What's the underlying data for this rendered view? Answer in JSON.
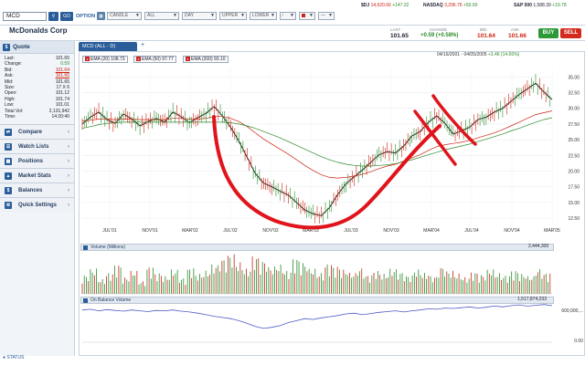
{
  "toolbar": {
    "ticker": "MCD",
    "go_label": "GO",
    "option_label": "OPTION",
    "chart_type": "CANDLE",
    "range": "ALL",
    "interval": "DAY",
    "upper": "UPPER",
    "lower": "LOWER"
  },
  "indices": [
    {
      "name": "$DJ",
      "value": "14,620.66",
      "change": "+147.22",
      "dir": "up"
    },
    {
      "name": "NASDAQ",
      "value": "3,296.76",
      "change": "+50.00",
      "dir": "up"
    },
    {
      "name": "S&P 500",
      "value": "1,588.39",
      "change": "+19.78",
      "dir": "up"
    }
  ],
  "quote": {
    "company": "McDonalds Corp",
    "last_label": "LAST",
    "last": "101.65",
    "change_label": "CHANGE",
    "change": "+0.59 (+0.58%)",
    "bid_label": "BID",
    "bid": "101.64",
    "ask_label": "ASK",
    "ask": "101.66",
    "buy": "BUY",
    "sell": "SELL"
  },
  "sidebar": {
    "quote_title": "Quote",
    "rows": [
      {
        "label": "Last:",
        "value": "101.65",
        "color": "#223"
      },
      {
        "label": "Change:",
        "value": "0.59",
        "color": "#2a8a2a"
      },
      {
        "label": "Bid:",
        "value": "101.64",
        "color": "#c21"
      },
      {
        "label": "Ask:",
        "value": "101.66",
        "color": "#c21"
      },
      {
        "label": "Mid:",
        "value": "101.65",
        "color": "#223"
      },
      {
        "label": "Size:",
        "value": "17 X 6",
        "color": "#223"
      },
      {
        "label": "Open:",
        "value": "101.12",
        "color": "#223"
      },
      {
        "label": "High:",
        "value": "101.74",
        "color": "#223"
      },
      {
        "label": "Low:",
        "value": "101.01",
        "color": "#223"
      },
      {
        "label": "Total Vol:",
        "value": "2,131,942",
        "color": "#223"
      },
      {
        "label": "Time:",
        "value": "14:20:40",
        "color": "#223"
      }
    ],
    "menu": [
      {
        "label": "Compare",
        "icon": "compare-icon"
      },
      {
        "label": "Watch Lists",
        "icon": "watchlist-icon"
      },
      {
        "label": "Positions",
        "icon": "positions-icon"
      },
      {
        "label": "Market Stats",
        "icon": "market-stats-icon"
      },
      {
        "label": "Balances",
        "icon": "balances-icon"
      },
      {
        "label": "Quick Settings",
        "icon": "settings-icon"
      }
    ],
    "status": "STATUS"
  },
  "chart_tab": "MCD (ALL - D)",
  "ema": [
    {
      "label": "EMA (20) 108.73",
      "color": "#c21"
    },
    {
      "label": "EMA (50) 97.77",
      "color": "#c21"
    },
    {
      "label": "EMA (200) 93.10",
      "color": "#2a8a2a"
    }
  ],
  "date_range": "04/16/2001 - 04/05/2005",
  "date_change": "+3.46 (14.66%)",
  "chart_data": {
    "type": "line",
    "series": [
      {
        "values": [
          27.5,
          28.6,
          29.4,
          28.2,
          27.6,
          29.1,
          28.3,
          27.2,
          27.9,
          28.4,
          27.8,
          29.4,
          28.7,
          27.7,
          28.5,
          29.2,
          30.3,
          28.8,
          27.0,
          24.8,
          22.2,
          19.6,
          18.1,
          17.5,
          16.8,
          16.2,
          15.0,
          13.8,
          13.2,
          12.9,
          14.2,
          16.3,
          18.0,
          19.1,
          20.2,
          21.4,
          22.6,
          23.1,
          22.9,
          24.0,
          25.6,
          26.3,
          27.8,
          28.8,
          27.6,
          25.9,
          26.4,
          27.0,
          28.2,
          28.6,
          29.4,
          30.0,
          31.1,
          32.2,
          33.1,
          34.0,
          32.6,
          31.4
        ]
      },
      {
        "values": [
          28.0,
          28.1,
          28.3,
          28.3,
          28.2,
          28.3,
          28.3,
          28.2,
          28.2,
          28.2,
          28.2,
          28.4,
          28.4,
          28.3,
          28.3,
          28.4,
          28.7,
          28.7,
          28.4,
          27.9,
          27.1,
          26.1,
          25.1,
          24.3,
          23.5,
          22.7,
          21.8,
          20.9,
          20.1,
          19.4,
          19.0,
          18.9,
          19.0,
          19.2,
          19.5,
          19.9,
          20.4,
          20.8,
          21.1,
          21.6,
          22.1,
          22.6,
          23.3,
          23.9,
          24.2,
          24.4,
          24.6,
          24.9,
          25.3,
          25.7,
          26.1,
          26.6,
          27.2,
          27.8,
          28.4,
          29.0,
          29.3,
          29.6
        ]
      },
      {
        "values": [
          26.8,
          27.1,
          27.4,
          27.6,
          27.7,
          27.8,
          27.8,
          27.8,
          27.8,
          27.8,
          27.8,
          27.8,
          27.8,
          27.8,
          27.8,
          27.8,
          27.8,
          27.8,
          27.7,
          27.5,
          27.2,
          26.8,
          26.3,
          25.8,
          25.3,
          24.7,
          24.1,
          23.5,
          22.9,
          22.3,
          21.8,
          21.4,
          21.1,
          20.9,
          20.8,
          20.8,
          20.9,
          21.0,
          21.2,
          21.5,
          21.8,
          22.2,
          22.6,
          23.0,
          23.4,
          23.7,
          24.0,
          24.3,
          24.7,
          25.1,
          25.5,
          25.9,
          26.4,
          26.8,
          27.3,
          27.8,
          28.2,
          28.5
        ]
      }
    ],
    "x_ticks": [
      "JUL'01",
      "NOV'01",
      "MAR'02",
      "JUL'02",
      "NOV'02",
      "MAR'03",
      "JUL'03",
      "NOV'03",
      "MAR'04",
      "JUL'04",
      "NOV'04",
      "MAR'05"
    ],
    "y_ticks": [
      "35.00",
      "32.50",
      "30.00",
      "27.50",
      "25.00",
      "22.50",
      "20.00",
      "17.50",
      "15.00",
      "12.50"
    ],
    "ylim": [
      11.5,
      36.5
    ],
    "volume": {
      "title": "Volume (Millions)",
      "max_label": "2,444,300",
      "values": [
        0.45,
        0.6,
        0.35,
        0.5,
        0.7,
        0.4,
        0.55,
        0.3,
        0.65,
        0.5,
        0.42,
        0.58,
        0.38,
        0.62,
        0.48,
        0.55,
        0.7,
        0.85,
        0.95,
        0.75,
        0.6,
        0.9,
        0.8,
        0.65,
        0.7,
        0.55,
        0.85,
        0.75,
        0.6,
        0.5,
        0.72,
        0.66,
        0.58,
        0.5,
        0.62,
        0.45,
        0.55,
        0.48,
        0.6,
        0.52,
        0.44,
        0.58,
        0.5,
        0.42,
        0.65,
        0.55,
        0.48,
        0.4,
        0.52,
        0.46,
        0.58,
        0.5,
        0.44,
        0.56,
        0.48,
        0.42,
        0.6,
        0.5
      ]
    },
    "obv": {
      "title": "On Balance Volume",
      "top_label": "1,517,874,233",
      "right_labels": [
        "600,000,...",
        "0.00"
      ],
      "values": [
        0.82,
        0.84,
        0.8,
        0.83,
        0.81,
        0.79,
        0.82,
        0.8,
        0.78,
        0.81,
        0.8,
        0.82,
        0.79,
        0.77,
        0.74,
        0.7,
        0.66,
        0.63,
        0.6,
        0.55,
        0.48,
        0.4,
        0.35,
        0.38,
        0.42,
        0.5,
        0.55,
        0.6,
        0.58,
        0.62,
        0.65,
        0.68,
        0.72,
        0.74,
        0.7,
        0.73,
        0.76,
        0.78,
        0.8,
        0.77,
        0.8,
        0.82,
        0.85,
        0.84,
        0.87,
        0.86,
        0.88,
        0.9,
        0.87,
        0.89,
        0.92,
        0.9,
        0.93,
        0.95,
        0.92,
        0.94,
        0.96,
        0.93
      ]
    }
  }
}
